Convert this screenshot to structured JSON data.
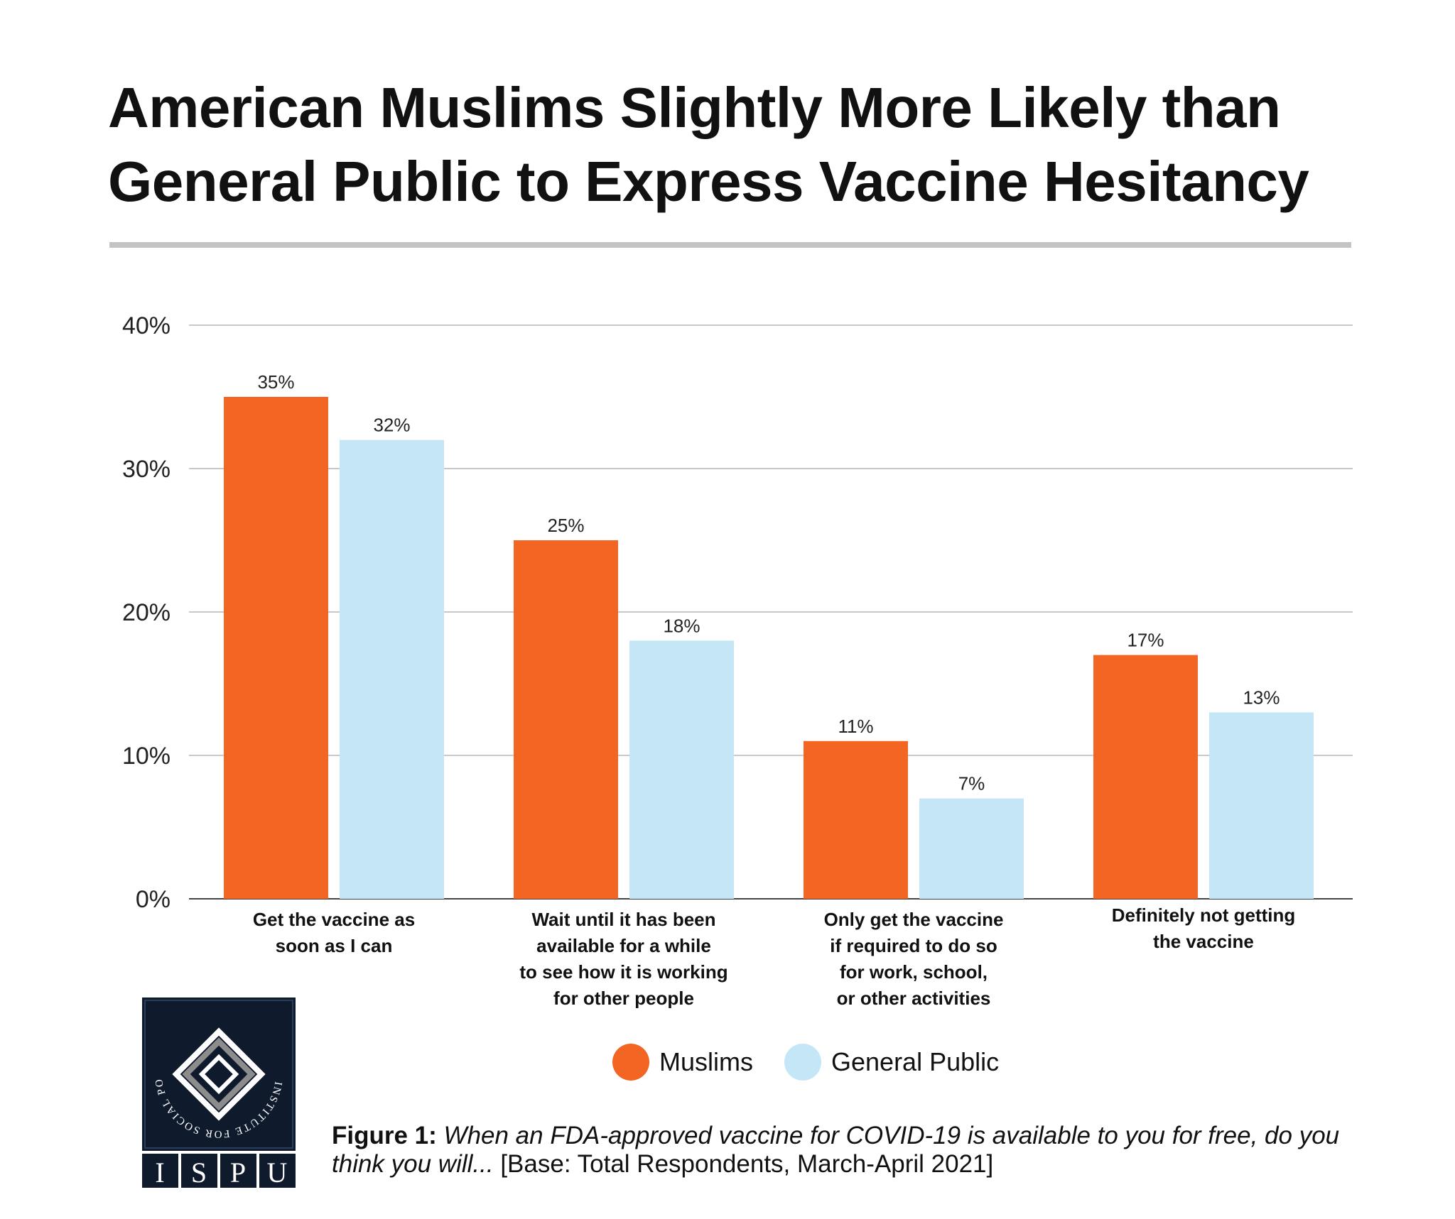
{
  "title_lines": [
    "American Muslims Slightly More Likely than",
    "General Public to Express Vaccine Hesitancy"
  ],
  "chart_data": {
    "type": "bar",
    "title": "American Muslims Slightly More Likely than General Public to Express Vaccine Hesitancy",
    "categories": [
      [
        "Get the vaccine as",
        "soon as I can"
      ],
      [
        "Wait until it has been",
        "available for a while",
        "to see how it is working",
        "for other people"
      ],
      [
        "Only get the vaccine",
        "if required to do so",
        "for work, school,",
        "or other activities"
      ],
      [
        "Definitely not getting",
        "the vaccine"
      ]
    ],
    "series": [
      {
        "name": "Muslims",
        "values": [
          35,
          25,
          11,
          17
        ],
        "color": "#f26522"
      },
      {
        "name": "General Public",
        "values": [
          32,
          18,
          7,
          13
        ],
        "color": "#c5e6f7"
      }
    ],
    "ylim": [
      0,
      40
    ],
    "yticks": [
      0,
      10,
      20,
      30,
      40
    ],
    "ytick_labels": [
      "0%",
      "10%",
      "20%",
      "30%",
      "40%"
    ],
    "value_suffix": "%",
    "grid": true,
    "legend_position": "bottom"
  },
  "legend": {
    "muslims": "Muslims",
    "general_public": "General Public"
  },
  "caption": {
    "label": "Figure 1:",
    "question": "When an FDA-approved vaccine for COVID-19 is available to you for free, do you think you will...",
    "base": "[Base: Total Respondents, March-April 2021]"
  },
  "logo": {
    "ring_text": "INSTITUTE FOR SOCIAL POLICY AND UNDERSTANDING",
    "letters": [
      "I",
      "S",
      "P",
      "U"
    ],
    "color": "#0f1b2d"
  }
}
